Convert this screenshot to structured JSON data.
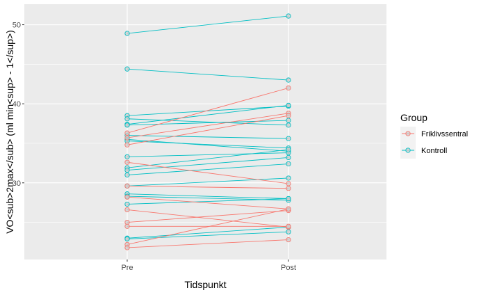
{
  "chart_data": {
    "type": "line",
    "xlabel": "Tidspunkt",
    "ylabel": "VO<sub>2max</sub> (ml min<sup> - 1</sup>)",
    "categories": [
      "Pre",
      "Post"
    ],
    "ylim": [
      20.3,
      52.6
    ],
    "yticks": [
      30,
      40,
      50
    ],
    "grid": true,
    "legend": {
      "title": "Group",
      "placement": "right",
      "entries": [
        {
          "name": "Friklivssentral",
          "color": "#F8766D"
        },
        {
          "name": "Kontroll",
          "color": "#00BFC4"
        }
      ]
    },
    "series": [
      {
        "group": "Kontroll",
        "values": [
          48.9,
          51.1
        ]
      },
      {
        "group": "Kontroll",
        "values": [
          44.4,
          43.0
        ]
      },
      {
        "group": "Kontroll",
        "values": [
          38.5,
          39.7
        ]
      },
      {
        "group": "Kontroll",
        "values": [
          38.1,
          37.3
        ]
      },
      {
        "group": "Kontroll",
        "values": [
          37.4,
          39.8
        ]
      },
      {
        "group": "Kontroll",
        "values": [
          37.3,
          37.9
        ]
      },
      {
        "group": "Kontroll",
        "values": [
          36.0,
          35.6
        ]
      },
      {
        "group": "Kontroll",
        "values": [
          35.5,
          34.0
        ]
      },
      {
        "group": "Kontroll",
        "values": [
          35.3,
          34.4
        ]
      },
      {
        "group": "Kontroll",
        "values": [
          33.3,
          33.8
        ]
      },
      {
        "group": "Kontroll",
        "values": [
          31.9,
          34.2
        ]
      },
      {
        "group": "Kontroll",
        "values": [
          31.6,
          33.2
        ]
      },
      {
        "group": "Kontroll",
        "values": [
          31.0,
          32.4
        ]
      },
      {
        "group": "Kontroll",
        "values": [
          29.6,
          30.6
        ]
      },
      {
        "group": "Kontroll",
        "values": [
          28.6,
          28.0
        ]
      },
      {
        "group": "Kontroll",
        "values": [
          28.3,
          27.8
        ]
      },
      {
        "group": "Kontroll",
        "values": [
          27.3,
          28.0
        ]
      },
      {
        "group": "Kontroll",
        "values": [
          23.0,
          24.4
        ]
      },
      {
        "group": "Kontroll",
        "values": [
          22.9,
          23.8
        ]
      },
      {
        "group": "Friklivssentral",
        "values": [
          36.3,
          42.0
        ]
      },
      {
        "group": "Friklivssentral",
        "values": [
          35.7,
          38.8
        ]
      },
      {
        "group": "Friklivssentral",
        "values": [
          34.8,
          38.5
        ]
      },
      {
        "group": "Friklivssentral",
        "values": [
          32.6,
          29.9
        ]
      },
      {
        "group": "Friklivssentral",
        "values": [
          29.6,
          29.3
        ]
      },
      {
        "group": "Friklivssentral",
        "values": [
          28.2,
          26.7
        ]
      },
      {
        "group": "Friklivssentral",
        "values": [
          26.6,
          24.4
        ]
      },
      {
        "group": "Friklivssentral",
        "values": [
          25.0,
          26.5
        ]
      },
      {
        "group": "Friklivssentral",
        "values": [
          24.5,
          24.5
        ]
      },
      {
        "group": "Friklivssentral",
        "values": [
          22.2,
          26.7
        ]
      },
      {
        "group": "Friklivssentral",
        "values": [
          21.8,
          22.8
        ]
      }
    ]
  }
}
